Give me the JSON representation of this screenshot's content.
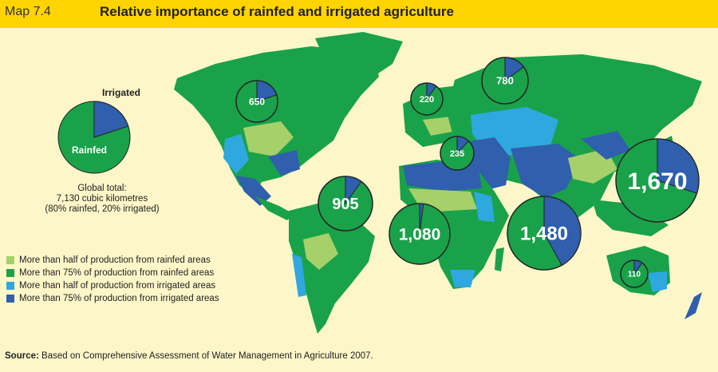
{
  "header": {
    "map_number": "Map 7.4",
    "title": "Relative importance of rainfed and irrigated agriculture"
  },
  "colors": {
    "header_bg": "#ffd400",
    "page_bg": "#fdf6c8",
    "more_than_half_rainfed": "#a6d06a",
    "more_than_75_rainfed": "#19a24a",
    "more_than_half_irrigated": "#2fa8e0",
    "more_than_75_irrigated": "#2f5fad"
  },
  "key": {
    "irrigated_label": "Irrigated",
    "rainfed_label": "Rainfed",
    "irrigated_share": 0.2,
    "global_total_line1": "Global total:",
    "global_total_line2": "7,130 cubic kilometres",
    "global_total_line3": "(80% rainfed, 20% irrigated)"
  },
  "regions": [
    {
      "label": "650",
      "irrigated_share": 0.2
    },
    {
      "label": "220",
      "irrigated_share": 0.1
    },
    {
      "label": "780",
      "irrigated_share": 0.15
    },
    {
      "label": "235",
      "irrigated_share": 0.12
    },
    {
      "label": "905",
      "irrigated_share": 0.1
    },
    {
      "label": "1,080",
      "irrigated_share": 0.02
    },
    {
      "label": "1,480",
      "irrigated_share": 0.42
    },
    {
      "label": "1,670",
      "irrigated_share": 0.3
    },
    {
      "label": "110",
      "irrigated_share": 0.1
    }
  ],
  "legend": [
    {
      "label": "More than half of production from rainfed areas",
      "color": "#a6d06a"
    },
    {
      "label": "More than 75% of production from rainfed areas",
      "color": "#19a24a"
    },
    {
      "label": "More than half of production from irrigated areas",
      "color": "#2fa8e0"
    },
    {
      "label": "More than 75% of production from irrigated areas",
      "color": "#2f5fad"
    }
  ],
  "source": {
    "prefix": "Source:",
    "text": " Based on Comprehensive Assessment of Water Management in Agriculture 2007."
  }
}
